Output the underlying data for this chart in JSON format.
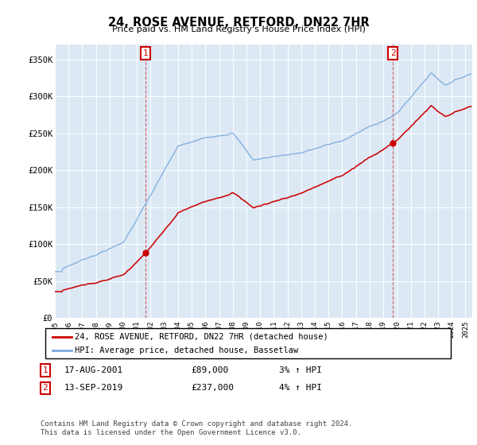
{
  "title": "24, ROSE AVENUE, RETFORD, DN22 7HR",
  "subtitle": "Price paid vs. HM Land Registry's House Price Index (HPI)",
  "ylabel_ticks": [
    "£0",
    "£50K",
    "£100K",
    "£150K",
    "£200K",
    "£250K",
    "£300K",
    "£350K"
  ],
  "ytick_values": [
    0,
    50000,
    100000,
    150000,
    200000,
    250000,
    300000,
    350000
  ],
  "ylim": [
    0,
    370000
  ],
  "sale1_year": 2001.625,
  "sale2_year": 2019.708,
  "sale1_price": 89000,
  "sale2_price": 237000,
  "sale1_date": "17-AUG-2001",
  "sale2_date": "13-SEP-2019",
  "sale1_hpi": "3% ↑ HPI",
  "sale2_hpi": "4% ↑ HPI",
  "legend_line1": "24, ROSE AVENUE, RETFORD, DN22 7HR (detached house)",
  "legend_line2": "HPI: Average price, detached house, Bassetlaw",
  "footnote": "Contains HM Land Registry data © Crown copyright and database right 2024.\nThis data is licensed under the Open Government Licence v3.0.",
  "line_color_price": "#cc0000",
  "line_color_hpi": "#7aaadd",
  "dot_color": "#cc0000",
  "vline_color": "#cc0000",
  "background_color": "#ffffff",
  "plot_bg_color": "#dce9f5",
  "grid_color": "#ffffff",
  "xmin": 1995,
  "xmax": 2025.5
}
